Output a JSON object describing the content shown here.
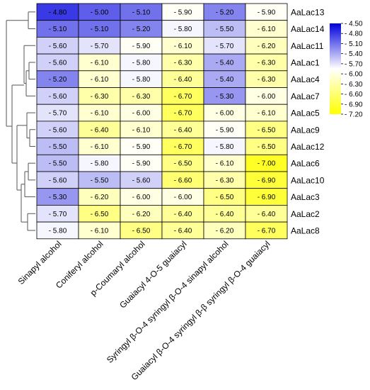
{
  "chart_data": {
    "type": "heatmap",
    "columns": [
      "Sinapyl alcohol",
      "Coniferyl alcohol",
      "p-Coumaryl alcohol",
      "Guaiacyl 4-O-5 guaiacyl",
      "Syringyl β-O-4 syringyl β-O-4 sinapyl alcohol",
      "Guaiacyl β-O-4 syringyl β-β syringyl β-O-4 guaiacyl"
    ],
    "rows": [
      "AaLac13",
      "AaLac14",
      "AaLac11",
      "AaLac1",
      "AaLac4",
      "AaLac7",
      "AaLac5",
      "AaLac9",
      "AaLac12",
      "AaLac6",
      "AaLac10",
      "AaLac3",
      "AaLac2",
      "AaLac8"
    ],
    "values": [
      [
        -4.8,
        -5.0,
        -5.1,
        -5.9,
        -5.2,
        -5.9
      ],
      [
        -5.1,
        -5.1,
        -5.2,
        -5.8,
        -5.5,
        -6.1
      ],
      [
        -5.6,
        -5.7,
        -5.9,
        -6.1,
        -5.7,
        -6.2
      ],
      [
        -5.6,
        -6.1,
        -5.8,
        -6.3,
        -5.4,
        -6.3
      ],
      [
        -5.2,
        -6.1,
        -5.8,
        -6.4,
        -5.4,
        -6.3
      ],
      [
        -5.6,
        -6.3,
        -6.3,
        -6.7,
        -5.3,
        -6.0
      ],
      [
        -5.7,
        -6.1,
        -6.0,
        -6.7,
        -6.0,
        -6.1
      ],
      [
        -5.6,
        -6.4,
        -6.1,
        -6.4,
        -5.9,
        -6.5
      ],
      [
        -5.5,
        -6.1,
        -5.9,
        -6.7,
        -5.8,
        -6.5
      ],
      [
        -5.5,
        -5.8,
        -5.9,
        -6.5,
        -6.1,
        -7.0
      ],
      [
        -5.6,
        -5.5,
        -5.6,
        -6.6,
        -6.3,
        -6.9
      ],
      [
        -5.3,
        -6.2,
        -6.0,
        -6.0,
        -6.5,
        -6.9
      ],
      [
        -5.7,
        -6.5,
        -6.2,
        -6.4,
        -6.4,
        -6.4
      ],
      [
        -5.8,
        -6.1,
        -6.5,
        -6.4,
        -6.2,
        -6.7
      ]
    ],
    "cell_labels": [
      [
        "- 4.80",
        "- 5.00",
        "- 5.10",
        "- 5.90",
        "- 5.20",
        "- 5.90"
      ],
      [
        "- 5.10",
        "- 5.10",
        "- 5.20",
        "- 5.80",
        "- 5.50",
        "- 6.10"
      ],
      [
        "- 5.60",
        "- 5.70",
        "- 5.90",
        "- 6.10",
        "- 5.70",
        "- 6.20"
      ],
      [
        "- 5.60",
        "- 6.10",
        "- 5.80",
        "- 6.30",
        "- 5.40",
        "- 6.30"
      ],
      [
        "- 5.20",
        "- 6.10",
        "- 5.80",
        "- 6.40",
        "- 5.40",
        "- 6.30"
      ],
      [
        "- 5.60",
        "- 6.30",
        "- 6.30",
        "- 6.70",
        "- 5.30",
        "- 6.00"
      ],
      [
        "- 5.70",
        "- 6.10",
        "- 6.00",
        "- 6.70",
        "- 6.00",
        "- 6.10"
      ],
      [
        "- 5.60",
        "- 6.40",
        "- 6.10",
        "- 6.40",
        "- 5.90",
        "- 6.50"
      ],
      [
        "- 5.50",
        "- 6.10",
        "- 5.90",
        "- 6.70",
        "- 5.80",
        "- 6.50"
      ],
      [
        "- 5.50",
        "- 5.80",
        "- 5.90",
        "- 6.50",
        "- 6.10",
        "- 7.00"
      ],
      [
        "- 5.60",
        "- 5.50",
        "- 5.60",
        "- 6.60",
        "- 6.30",
        "- 6.90"
      ],
      [
        "- 5.30",
        "- 6.20",
        "- 6.00",
        "- 6.00",
        "- 6.50",
        "- 6.90"
      ],
      [
        "- 5.70",
        "- 6.50",
        "- 6.20",
        "- 6.40",
        "- 6.40",
        "- 6.40"
      ],
      [
        "- 5.80",
        "- 6.10",
        "- 6.50",
        "- 6.40",
        "- 6.20",
        "- 6.70"
      ]
    ],
    "colorbar": {
      "range": [
        -7.2,
        -4.5
      ],
      "ticks": [
        -4.5,
        -4.8,
        -5.1,
        -5.4,
        -5.7,
        -6.0,
        -6.3,
        -6.6,
        -6.9,
        -7.2
      ],
      "tick_labels": [
        "- 4.50",
        "- 4.80",
        "- 5.10",
        "- 5.40",
        "- 5.70",
        "- 6.00",
        "- 6.30",
        "- 6.60",
        "- 6.90",
        "- 7.20"
      ],
      "colors": {
        "high": "#0000dd",
        "mid": "#ffffff",
        "low": "#ffff00"
      },
      "mid_value": -5.85,
      "position": "right"
    },
    "dendrogram": "rows",
    "grid": true
  }
}
